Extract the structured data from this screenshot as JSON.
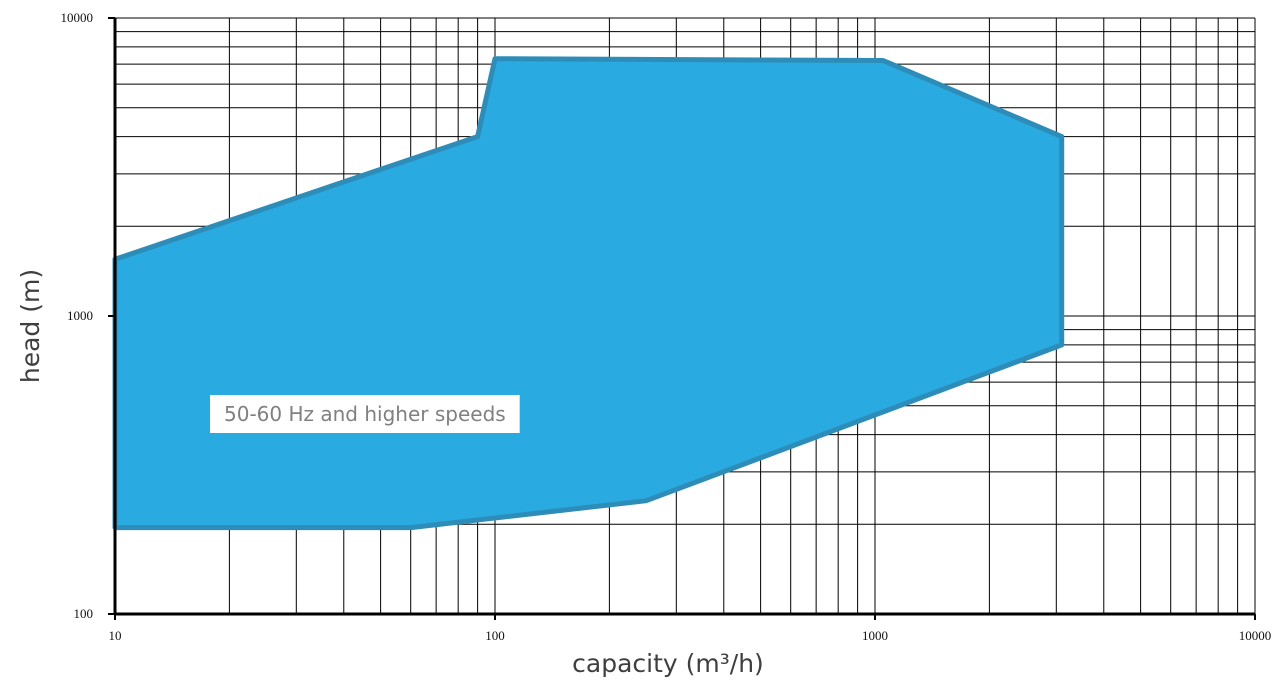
{
  "chart_data": {
    "type": "area",
    "title": "",
    "xlabel": "capacity (m³/h)",
    "ylabel": "head (m)",
    "xscale": "log",
    "yscale": "log",
    "xlim": [
      10,
      10000
    ],
    "ylim": [
      100,
      10000
    ],
    "grid": true,
    "x_tick_labels": [
      "10",
      "100",
      "1000",
      "10000"
    ],
    "y_tick_labels": [
      "100",
      "1000",
      "10000"
    ],
    "region_label": "50-60 Hz and higher speeds",
    "fill_color": "#29aae1",
    "outline_color": "#2e8db8",
    "series": [
      {
        "name": "50-60 Hz and higher speeds",
        "points": [
          {
            "x": 10,
            "y": 195
          },
          {
            "x": 60,
            "y": 195
          },
          {
            "x": 250,
            "y": 240
          },
          {
            "x": 3100,
            "y": 800
          },
          {
            "x": 3100,
            "y": 4000
          },
          {
            "x": 1050,
            "y": 7200
          },
          {
            "x": 100,
            "y": 7300
          },
          {
            "x": 90,
            "y": 4000
          },
          {
            "x": 10,
            "y": 1550
          }
        ]
      }
    ]
  }
}
